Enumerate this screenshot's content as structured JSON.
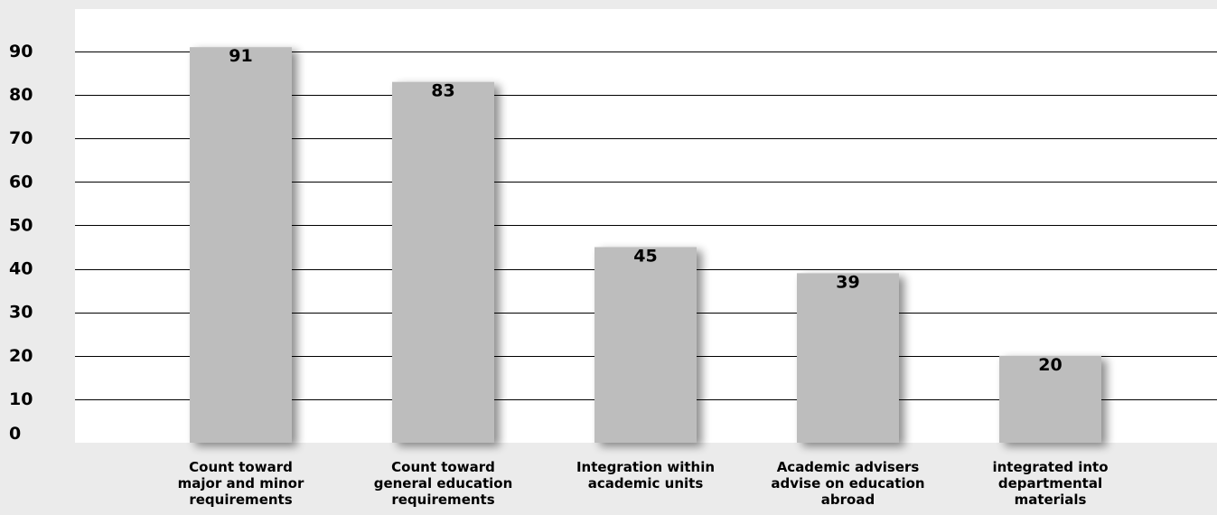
{
  "chart_data": {
    "type": "bar",
    "categories": [
      [
        "Count toward",
        "major and minor",
        "requirements"
      ],
      [
        "Count toward",
        "general education",
        "requirements"
      ],
      [
        "Integration within",
        "academic units"
      ],
      [
        "Academic advisers",
        "advise on education",
        "abroad"
      ],
      [
        "integrated into",
        "departmental",
        "materials"
      ]
    ],
    "values": [
      91,
      83,
      45,
      39,
      20
    ],
    "y_ticks": [
      "0",
      "10",
      "20",
      "30",
      "40",
      "50",
      "60",
      "70",
      "80",
      "90"
    ],
    "ylim": [
      0,
      90
    ],
    "grid": true,
    "legend": "none",
    "colors": {
      "background": "#ebebeb",
      "plot_background": "#ffffff",
      "bar": "#bdbdbd",
      "gridline": "#000000",
      "text": "#000000"
    }
  }
}
